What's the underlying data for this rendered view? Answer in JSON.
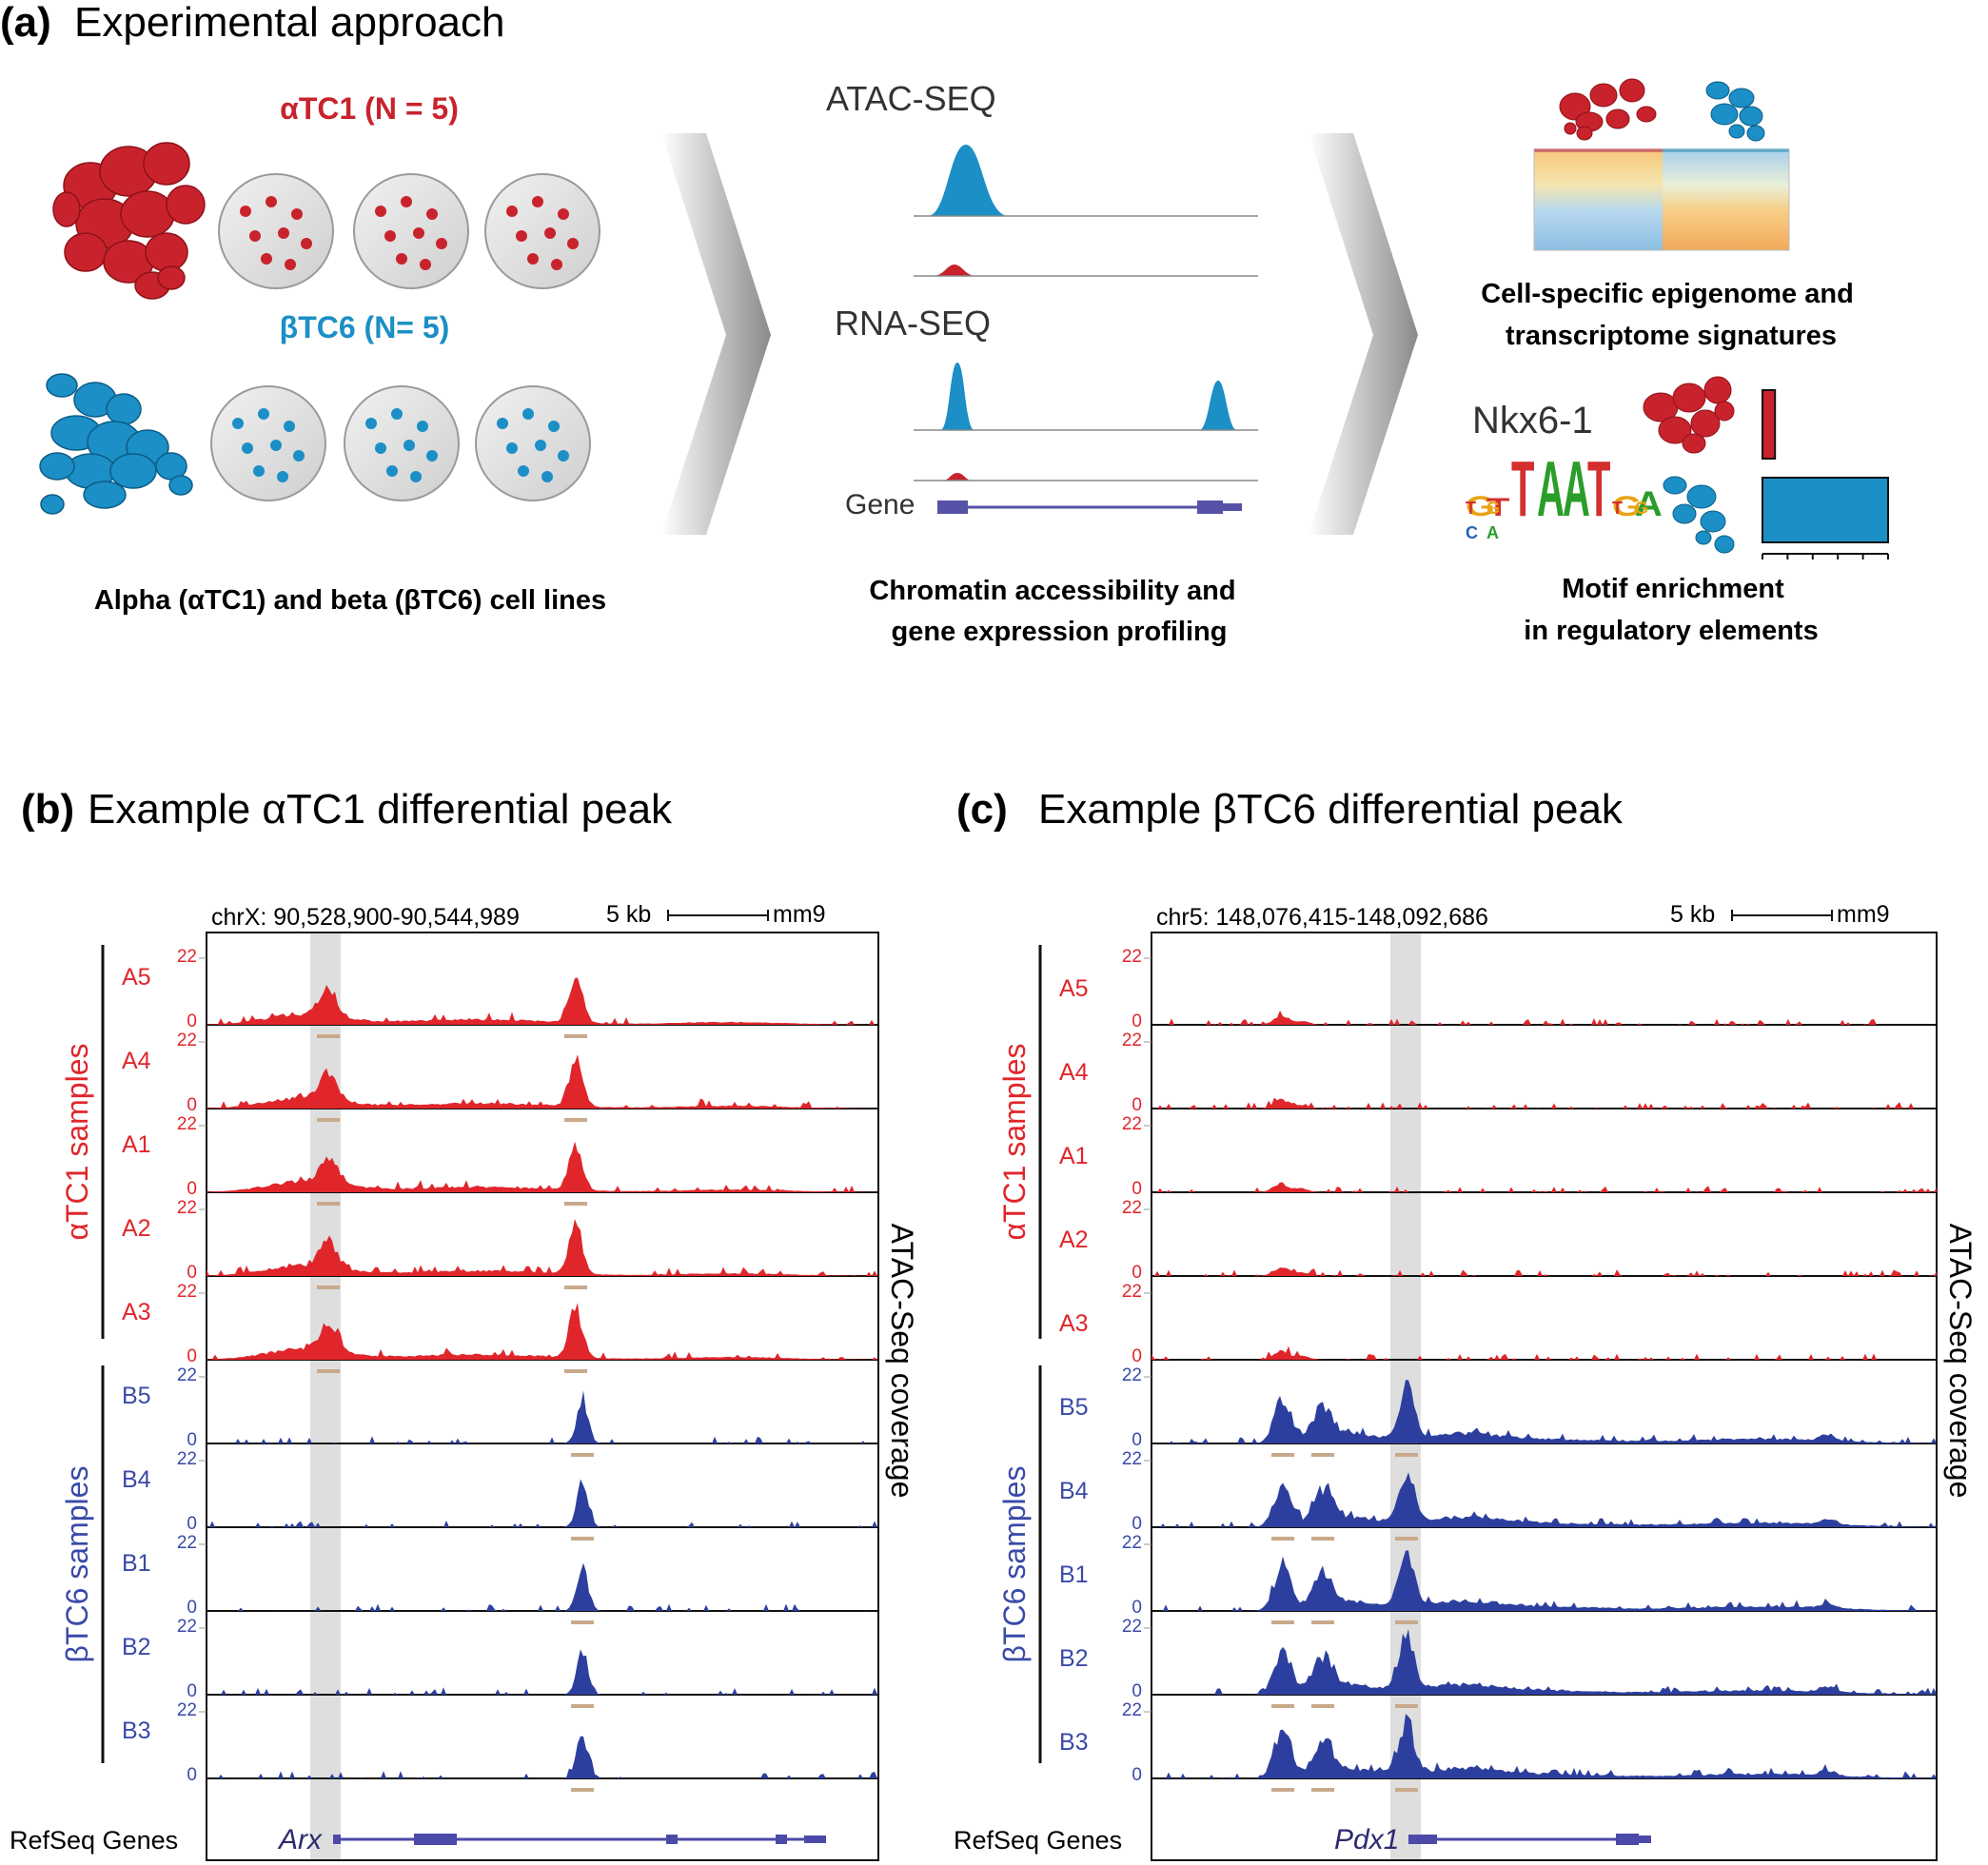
{
  "panel_a": {
    "label": "(a)",
    "title": "Experimental approach",
    "alpha_group": "αTC1 (N = 5)",
    "beta_group": "βTC6 (N= 5)",
    "caption_left": "Alpha (αTC1) and beta (βTC6) cell lines",
    "atac_label": "ATAC-SEQ",
    "rna_label": "RNA-SEQ",
    "gene_label": "Gene",
    "caption_mid_1": "Chromatin accessibility and",
    "caption_mid_2": "gene expression profiling",
    "caption_right_1": "Cell-specific epigenome and",
    "caption_right_2": "transcriptome signatures",
    "motif_name": "Nkx6-1",
    "motif_letters": [
      "G",
      "T",
      "T",
      "A",
      "A",
      "T",
      "G",
      "A"
    ],
    "motif_letters_low": [
      "T",
      "G",
      "C",
      "A",
      "T",
      "G"
    ],
    "caption_motif_1": "Motif enrichment",
    "caption_motif_2": "in regulatory elements",
    "motif_bar_values": {
      "alpha": 0.1,
      "beta": 1.0
    },
    "colors": {
      "alpha": "#c8232c",
      "beta": "#1b8fc6",
      "dish": "#dcdcdc"
    }
  },
  "panel_b": {
    "label": "(b)",
    "title": "Example αTC1 differential peak",
    "locus": "chrX: 90,528,900-90,544,989",
    "scale": "5 kb",
    "genome": "mm9",
    "gene": "Arx",
    "refseq_label": "RefSeq Genes",
    "alpha_group_label": "αTC1 samples",
    "beta_group_label": "βTC6 samples",
    "yaxis_label": "ATAC-Seq coverage",
    "alpha_tracks": [
      "A5",
      "A4",
      "A1",
      "A2",
      "A3"
    ],
    "beta_tracks": [
      "B5",
      "B4",
      "B1",
      "B2",
      "B3"
    ],
    "tick_top": "22",
    "tick_bottom": "0"
  },
  "panel_c": {
    "label": "(c)",
    "title": "Example βTC6 differential peak",
    "locus": "chr5: 148,076,415-148,092,686",
    "scale": "5 kb",
    "genome": "mm9",
    "gene": "Pdx1",
    "refseq_label": "RefSeq Genes",
    "alpha_group_label": "αTC1 samples",
    "beta_group_label": "βTC6 samples",
    "yaxis_label": "ATAC-Seq coverage",
    "alpha_tracks": [
      "A5",
      "A4",
      "A1",
      "A2",
      "A3"
    ],
    "beta_tracks": [
      "B5",
      "B4",
      "B1",
      "B2",
      "B3"
    ],
    "tick_top": "22",
    "tick_bottom": "0"
  }
}
